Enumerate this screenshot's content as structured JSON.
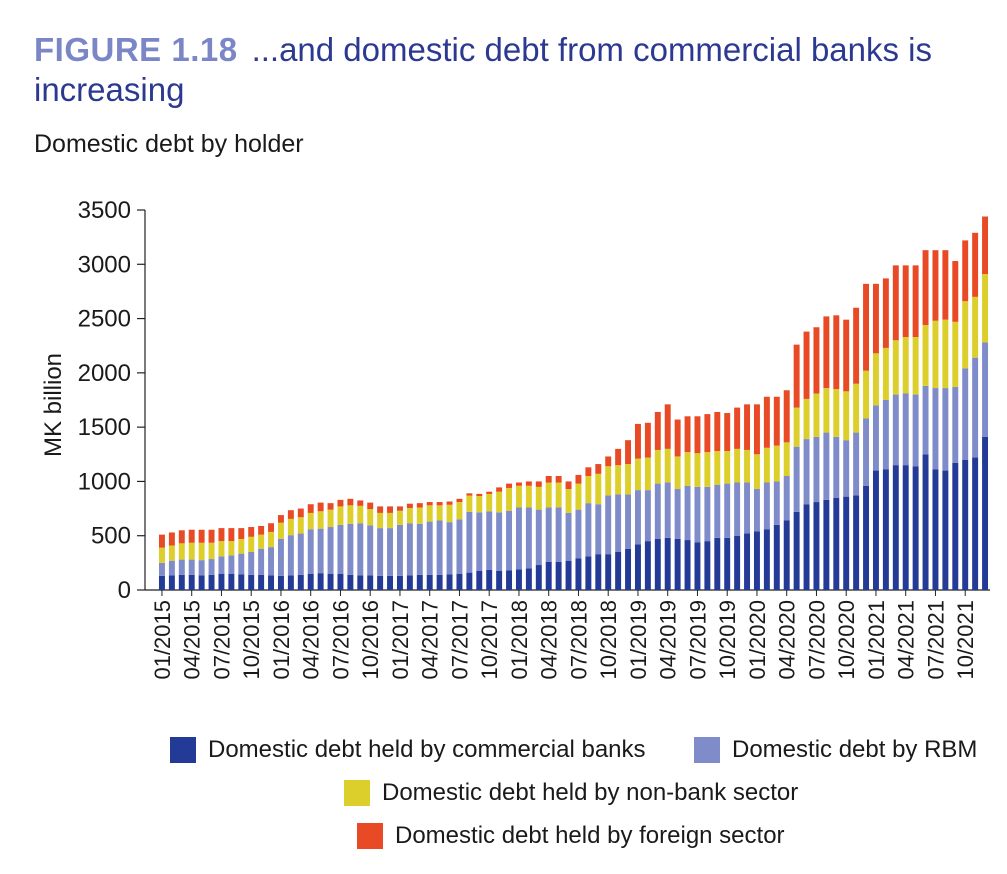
{
  "figure": {
    "label": "FIGURE 1.18",
    "title": "...and domestic debt from commercial banks is increasing",
    "subtitle": "Domestic debt by holder"
  },
  "colors": {
    "commercial_banks": "#233a96",
    "rbm": "#7f8cc9",
    "non_bank": "#dccf2b",
    "foreign": "#e84a25"
  },
  "chart_data": {
    "type": "bar",
    "stacked": true,
    "ylabel": "MK billion",
    "ylim": [
      0,
      3500
    ],
    "yticks": [
      0,
      500,
      1000,
      1500,
      2000,
      2500,
      3000,
      3500
    ],
    "x_tick_labels": [
      "01/2015",
      "04/2015",
      "07/2015",
      "10/2015",
      "01/2016",
      "04/2016",
      "07/2016",
      "10/2016",
      "01/2017",
      "04/2017",
      "07/2017",
      "10/2017",
      "01/2018",
      "04/2018",
      "07/2018",
      "10/2018",
      "01/2019",
      "04/2019",
      "07/2019",
      "10/2019",
      "01/2020",
      "04/2020",
      "07/2020",
      "10/2020",
      "01/2021",
      "04/2021",
      "07/2021",
      "10/2021"
    ],
    "legend_position": "bottom",
    "series": [
      {
        "name": "Domestic debt held by commercial banks",
        "values": [
          130,
          135,
          140,
          140,
          135,
          140,
          150,
          150,
          145,
          140,
          140,
          135,
          130,
          135,
          140,
          150,
          155,
          150,
          150,
          140,
          135,
          135,
          130,
          130,
          130,
          135,
          140,
          140,
          140,
          145,
          150,
          160,
          175,
          185,
          175,
          180,
          190,
          200,
          230,
          260,
          260,
          270,
          290,
          310,
          330,
          330,
          350,
          380,
          420,
          450,
          470,
          480,
          470,
          460,
          440,
          450,
          480,
          480,
          500,
          520,
          540,
          560,
          600,
          640,
          720,
          790,
          810,
          830,
          850,
          860,
          870,
          960,
          1100,
          1110,
          1150,
          1150,
          1140,
          1250,
          1110,
          1100,
          1170,
          1200,
          1220,
          1410
        ]
      },
      {
        "name": "Domestic debt by RBM",
        "values": [
          120,
          135,
          140,
          140,
          140,
          145,
          160,
          170,
          190,
          210,
          240,
          260,
          340,
          370,
          380,
          410,
          410,
          430,
          450,
          470,
          480,
          460,
          440,
          440,
          470,
          480,
          470,
          490,
          500,
          480,
          500,
          560,
          540,
          540,
          540,
          550,
          570,
          560,
          510,
          500,
          500,
          440,
          450,
          490,
          460,
          540,
          530,
          500,
          500,
          470,
          510,
          510,
          460,
          500,
          510,
          500,
          490,
          500,
          490,
          470,
          390,
          430,
          400,
          410,
          600,
          600,
          600,
          620,
          560,
          520,
          580,
          620,
          600,
          640,
          650,
          660,
          660,
          630,
          750,
          760,
          700,
          840,
          920,
          870
        ]
      },
      {
        "name": "Domestic debt held by non-bank sector",
        "values": [
          140,
          140,
          150,
          155,
          160,
          150,
          140,
          130,
          135,
          140,
          130,
          140,
          150,
          150,
          150,
          150,
          160,
          160,
          170,
          170,
          160,
          150,
          140,
          140,
          130,
          140,
          150,
          150,
          140,
          160,
          160,
          150,
          150,
          160,
          190,
          210,
          200,
          200,
          210,
          230,
          230,
          220,
          240,
          250,
          280,
          270,
          270,
          280,
          290,
          300,
          310,
          310,
          300,
          310,
          310,
          320,
          310,
          300,
          310,
          300,
          320,
          320,
          330,
          310,
          360,
          370,
          400,
          410,
          440,
          450,
          450,
          440,
          480,
          480,
          500,
          520,
          530,
          560,
          620,
          630,
          600,
          620,
          560,
          630
        ]
      },
      {
        "name": "Domestic debt held by foreign sector",
        "values": [
          120,
          120,
          120,
          120,
          120,
          120,
          120,
          120,
          100,
          90,
          80,
          80,
          70,
          80,
          80,
          80,
          80,
          60,
          60,
          60,
          50,
          60,
          60,
          60,
          40,
          40,
          40,
          30,
          30,
          30,
          30,
          20,
          20,
          20,
          40,
          40,
          30,
          40,
          50,
          60,
          60,
          70,
          80,
          80,
          90,
          90,
          150,
          220,
          320,
          320,
          350,
          410,
          340,
          330,
          340,
          350,
          360,
          350,
          380,
          420,
          460,
          470,
          450,
          480,
          580,
          620,
          610,
          660,
          680,
          660,
          700,
          800,
          640,
          640,
          690,
          660,
          660,
          690,
          650,
          640,
          560,
          560,
          590,
          530
        ]
      }
    ]
  }
}
